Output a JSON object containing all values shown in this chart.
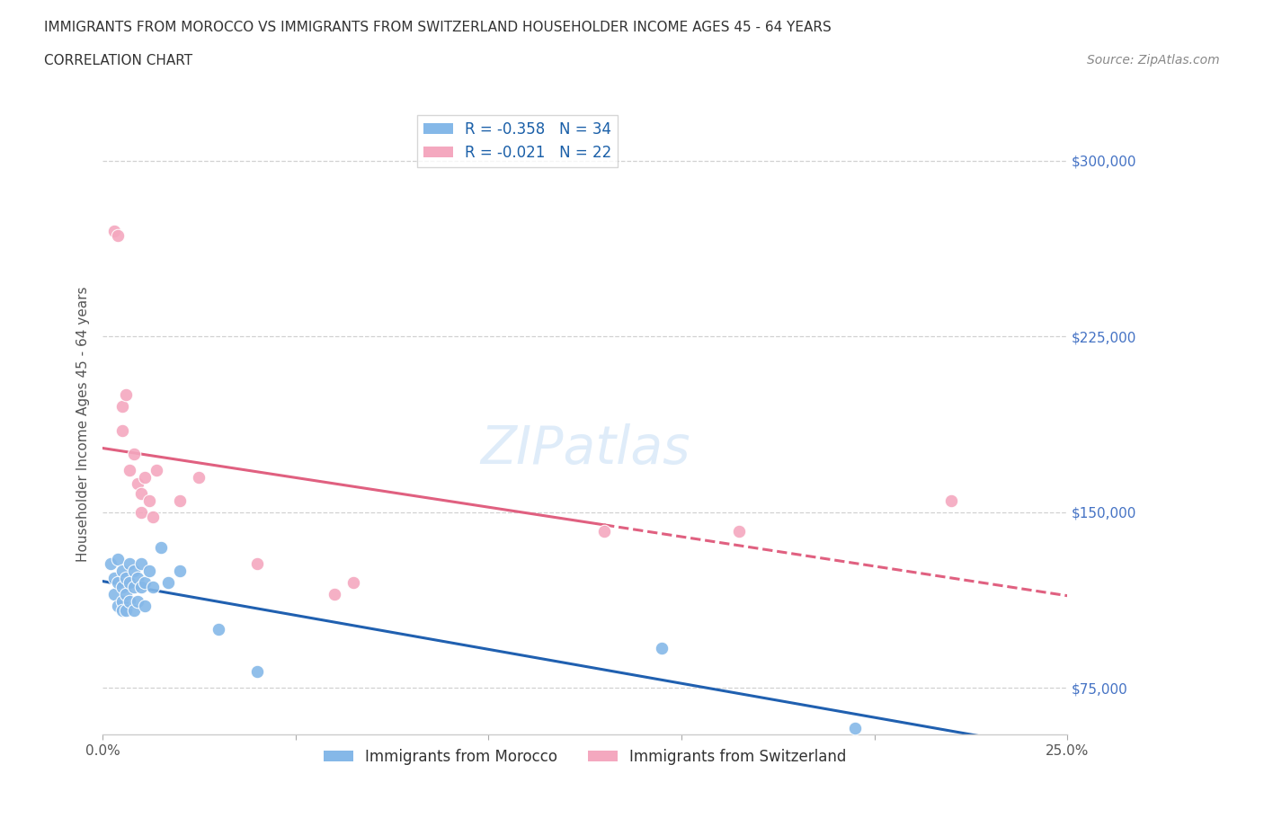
{
  "title_line1": "IMMIGRANTS FROM MOROCCO VS IMMIGRANTS FROM SWITZERLAND HOUSEHOLDER INCOME AGES 45 - 64 YEARS",
  "title_line2": "CORRELATION CHART",
  "source_text": "Source: ZipAtlas.com",
  "ylabel": "Householder Income Ages 45 - 64 years",
  "xlim": [
    0.0,
    0.25
  ],
  "ylim": [
    55000,
    320000
  ],
  "yticks": [
    75000,
    150000,
    225000,
    300000
  ],
  "xticks": [
    0.0,
    0.05,
    0.1,
    0.15,
    0.2,
    0.25
  ],
  "morocco_color": "#85b8e8",
  "switzerland_color": "#f4a8bf",
  "morocco_line_color": "#2060b0",
  "switzerland_line_color": "#e06080",
  "R_morocco": -0.358,
  "N_morocco": 34,
  "R_switzerland": -0.021,
  "N_switzerland": 22,
  "morocco_x": [
    0.002,
    0.003,
    0.003,
    0.004,
    0.004,
    0.004,
    0.005,
    0.005,
    0.005,
    0.005,
    0.006,
    0.006,
    0.006,
    0.007,
    0.007,
    0.007,
    0.008,
    0.008,
    0.008,
    0.009,
    0.009,
    0.01,
    0.01,
    0.011,
    0.011,
    0.012,
    0.013,
    0.015,
    0.017,
    0.02,
    0.03,
    0.04,
    0.145,
    0.195
  ],
  "morocco_y": [
    128000,
    122000,
    115000,
    130000,
    120000,
    110000,
    125000,
    118000,
    112000,
    108000,
    122000,
    115000,
    108000,
    128000,
    120000,
    112000,
    125000,
    118000,
    108000,
    122000,
    112000,
    128000,
    118000,
    120000,
    110000,
    125000,
    118000,
    135000,
    120000,
    125000,
    100000,
    82000,
    92000,
    58000
  ],
  "switzerland_x": [
    0.003,
    0.004,
    0.005,
    0.005,
    0.006,
    0.007,
    0.008,
    0.009,
    0.01,
    0.01,
    0.011,
    0.012,
    0.013,
    0.014,
    0.02,
    0.025,
    0.04,
    0.06,
    0.065,
    0.13,
    0.165,
    0.22
  ],
  "switzerland_y": [
    270000,
    268000,
    195000,
    185000,
    200000,
    168000,
    175000,
    162000,
    158000,
    150000,
    165000,
    155000,
    148000,
    168000,
    155000,
    165000,
    128000,
    115000,
    120000,
    142000,
    142000,
    155000
  ],
  "watermark": "ZIPatlas",
  "background_color": "#ffffff",
  "grid_color": "#cccccc"
}
